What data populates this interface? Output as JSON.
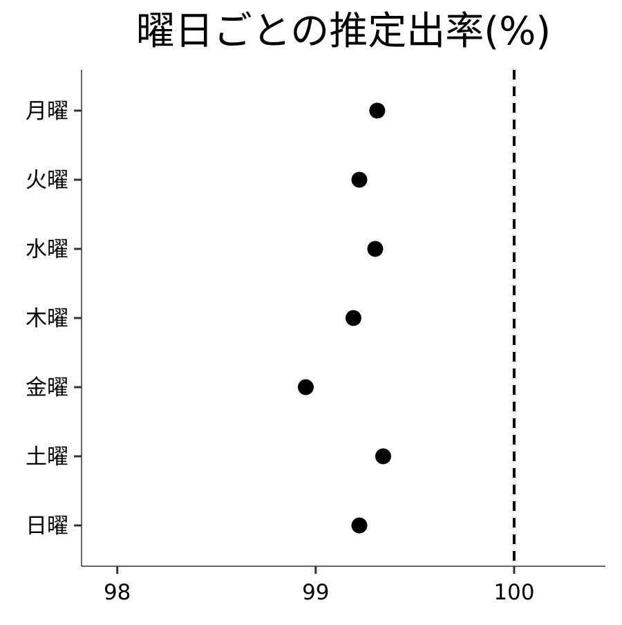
{
  "chart_data": {
    "type": "scatter",
    "title": "曜日ごとの推定出率(%)",
    "xlabel": "",
    "ylabel": "",
    "categories": [
      "月曜",
      "火曜",
      "水曜",
      "木曜",
      "金曜",
      "土曜",
      "日曜"
    ],
    "values": [
      99.31,
      99.22,
      99.3,
      99.19,
      98.95,
      99.34,
      99.22
    ],
    "xlim": [
      97.82,
      100.46
    ],
    "x_ticks": [
      98,
      99,
      100
    ],
    "x_tick_labels": [
      "98",
      "99",
      "100"
    ],
    "reference_line": {
      "x": 100,
      "style": "dashed"
    },
    "grid": false,
    "legend": "none",
    "colors": {
      "point": "#000000",
      "axis": "#333333",
      "reference": "#000000"
    }
  }
}
